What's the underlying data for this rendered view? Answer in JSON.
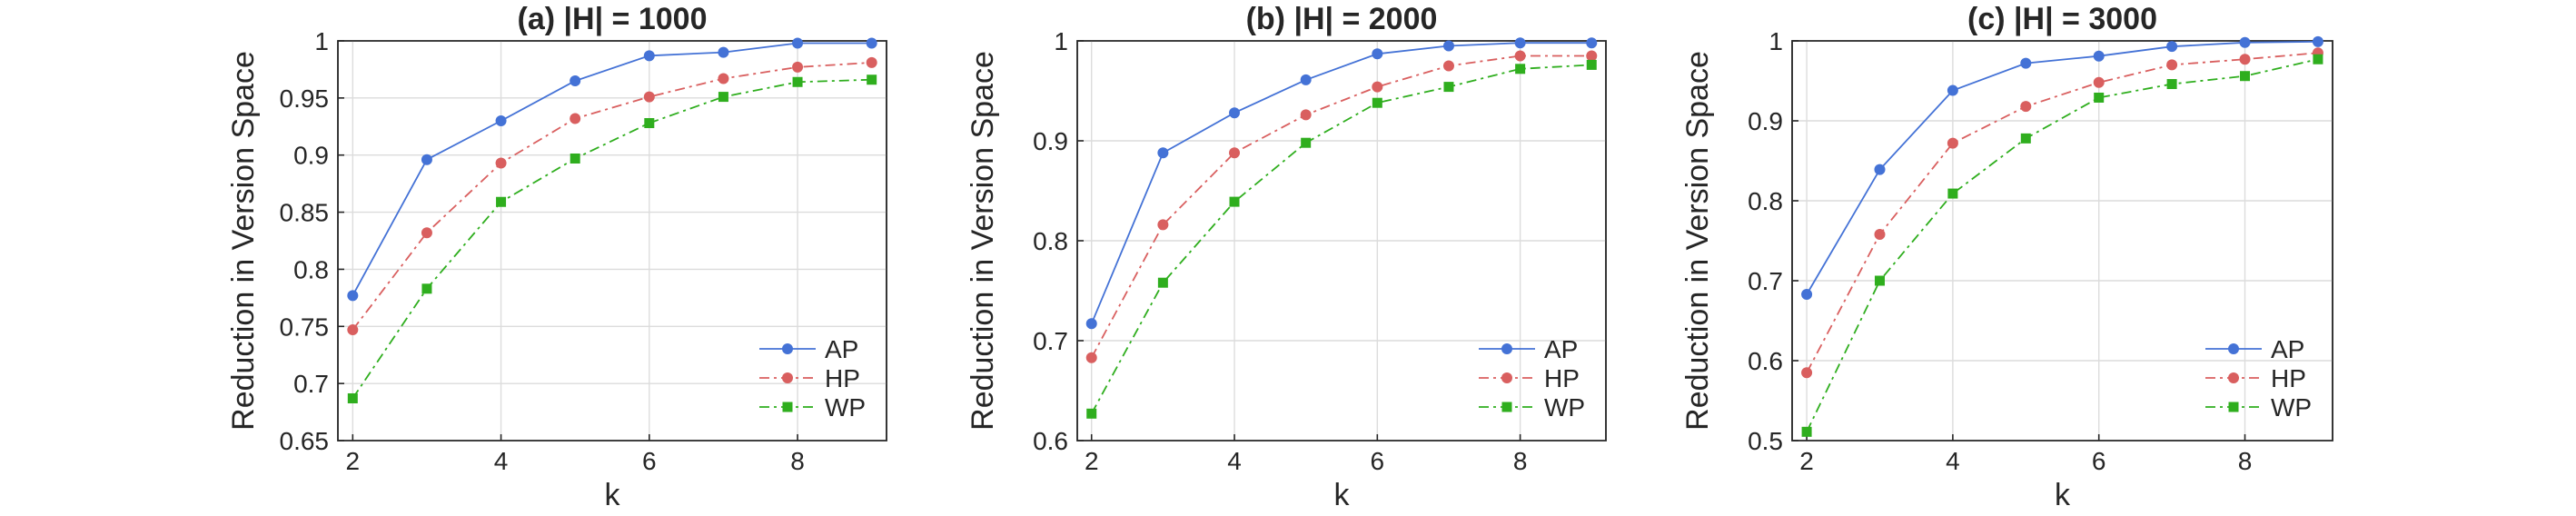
{
  "chart_data": [
    {
      "type": "line",
      "title": "(a) |H| = 1000",
      "xlabel": "k",
      "ylabel": "Reduction in Version Space",
      "x": [
        2,
        3,
        4,
        5,
        6,
        7,
        8,
        9
      ],
      "xlim": [
        1.8,
        9.2
      ],
      "ylim": [
        0.65,
        1.0
      ],
      "xticks": [
        "2",
        "4",
        "6",
        "8"
      ],
      "yticks": [
        "0.65",
        "0.7",
        "0.75",
        "0.8",
        "0.85",
        "0.9",
        "0.95",
        "1"
      ],
      "grid": true,
      "legend_position": "bottom-right",
      "series": [
        {
          "name": "AP",
          "values": [
            0.777,
            0.896,
            0.93,
            0.965,
            0.987,
            0.99,
            0.998,
            0.998
          ]
        },
        {
          "name": "HP",
          "values": [
            0.747,
            0.832,
            0.893,
            0.932,
            0.951,
            0.967,
            0.977,
            0.981
          ]
        },
        {
          "name": "WP",
          "values": [
            0.687,
            0.783,
            0.859,
            0.897,
            0.928,
            0.951,
            0.964,
            0.966
          ]
        }
      ]
    },
    {
      "type": "line",
      "title": "(b) |H| = 2000",
      "xlabel": "k",
      "ylabel": "Reduction in Version Space",
      "x": [
        2,
        3,
        4,
        5,
        6,
        7,
        8,
        9
      ],
      "xlim": [
        1.8,
        9.2
      ],
      "ylim": [
        0.6,
        1.0
      ],
      "xticks": [
        "2",
        "4",
        "6",
        "8"
      ],
      "yticks": [
        "0.6",
        "0.7",
        "0.8",
        "0.9",
        "1"
      ],
      "grid": true,
      "legend_position": "bottom-right",
      "series": [
        {
          "name": "AP",
          "values": [
            0.717,
            0.888,
            0.928,
            0.961,
            0.987,
            0.995,
            0.998,
            0.998
          ]
        },
        {
          "name": "HP",
          "values": [
            0.683,
            0.816,
            0.888,
            0.926,
            0.954,
            0.975,
            0.985,
            0.985
          ]
        },
        {
          "name": "WP",
          "values": [
            0.627,
            0.758,
            0.839,
            0.898,
            0.938,
            0.954,
            0.972,
            0.976
          ]
        }
      ]
    },
    {
      "type": "line",
      "title": "(c) |H| = 3000",
      "xlabel": "k",
      "ylabel": "Reduction in Version Space",
      "x": [
        2,
        3,
        4,
        5,
        6,
        7,
        8,
        9
      ],
      "xlim": [
        1.8,
        9.2
      ],
      "ylim": [
        0.5,
        1.0
      ],
      "xticks": [
        "2",
        "4",
        "6",
        "8"
      ],
      "yticks": [
        "0.5",
        "0.6",
        "0.7",
        "0.8",
        "0.9",
        "1"
      ],
      "grid": true,
      "legend_position": "bottom-right",
      "series": [
        {
          "name": "AP",
          "values": [
            0.683,
            0.839,
            0.938,
            0.972,
            0.981,
            0.993,
            0.998,
            0.999
          ]
        },
        {
          "name": "HP",
          "values": [
            0.585,
            0.758,
            0.872,
            0.918,
            0.948,
            0.97,
            0.977,
            0.985
          ]
        },
        {
          "name": "WP",
          "values": [
            0.511,
            0.7,
            0.809,
            0.878,
            0.929,
            0.946,
            0.956,
            0.977
          ]
        }
      ]
    }
  ],
  "series_styles": [
    {
      "series": "AP",
      "color": "#4472d6",
      "dash": "solid",
      "marker": "circle"
    },
    {
      "series": "HP",
      "color": "#d95f5f",
      "dash": "dashdot",
      "marker": "circle"
    },
    {
      "series": "WP",
      "color": "#2fae1e",
      "dash": "dashdot",
      "marker": "square"
    }
  ]
}
